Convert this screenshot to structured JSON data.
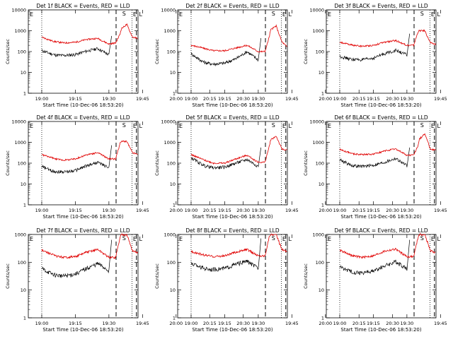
{
  "figure": {
    "series_colors": {
      "events": "#000000",
      "lld": "#e00000"
    },
    "y_ticks": [
      1,
      10,
      100,
      1000,
      10000
    ],
    "y_tick_labels": [
      "1",
      "10",
      "100",
      "1000",
      "10000"
    ],
    "x_ticks": [
      "19:00",
      "19:15",
      "19:30",
      "19:45",
      "20:00",
      "20:15",
      "20:30"
    ],
    "x_range_min": [
      -6,
      43
    ],
    "event_letters": [
      "E",
      "S",
      "E",
      "L"
    ]
  },
  "chart_data": [
    {
      "type": "line",
      "title": "Det 1f BLACK = Events, RED = LLD",
      "xlabel": "Start Time (10-Dec-06 18:53:20)",
      "ylabel": "Counts/sec",
      "y_scale": "log",
      "ylim": [
        1,
        10000
      ],
      "x_min": [
        0,
        4,
        6,
        10,
        15,
        20,
        25,
        30,
        33,
        35,
        35.5,
        38,
        40.5,
        43
      ],
      "events": [
        110,
        80,
        68,
        65,
        72,
        105,
        140,
        70
      ],
      "lld": [
        500,
        340,
        300,
        260,
        280,
        380,
        430,
        230,
        260,
        700,
        1250,
        2000,
        500,
        420
      ],
      "markers": {
        "E": 33.2,
        "S": 35.5,
        "L": 40.3
      }
    },
    {
      "type": "line",
      "title": "Det 2f BLACK = Events, RED = LLD",
      "xlabel": "Start Time (10-Dec-06 18:53:20)",
      "ylabel": "Counts/sec",
      "y_scale": "log",
      "ylim": [
        1,
        10000
      ],
      "x_min": [
        0,
        4,
        6,
        10,
        15,
        20,
        25,
        30,
        33,
        35,
        35.5,
        38,
        40.5,
        43
      ],
      "events": [
        80,
        40,
        30,
        25,
        28,
        45,
        100,
        40
      ],
      "lld": [
        200,
        160,
        140,
        110,
        110,
        150,
        200,
        100,
        100,
        550,
        1100,
        1700,
        300,
        160
      ],
      "markers": {
        "E": 33.2,
        "S": 35.5,
        "L": 40.3
      }
    },
    {
      "type": "line",
      "title": "Det 3f BLACK = Events, RED = LLD",
      "xlabel": "Start Time (10-Dec-06 18:53:20)",
      "ylabel": "Counts/sec",
      "y_scale": "log",
      "ylim": [
        1,
        10000
      ],
      "x_min": [
        0,
        4,
        6,
        10,
        15,
        20,
        25,
        30,
        33,
        35,
        35.5,
        38,
        40.5,
        43
      ],
      "events": [
        60,
        45,
        42,
        40,
        48,
        80,
        115,
        70
      ],
      "lld": [
        280,
        220,
        200,
        180,
        200,
        280,
        340,
        200,
        200,
        900,
        1000,
        1000,
        260,
        220
      ],
      "markers": {
        "E": 33.2,
        "S": 35.5,
        "L": 40.3
      }
    },
    {
      "type": "line",
      "title": "Det 4f BLACK = Events, RED = LLD",
      "xlabel": "Start Time (10-Dec-06 18:53:20)",
      "ylabel": "Counts/sec",
      "y_scale": "log",
      "ylim": [
        1,
        10000
      ],
      "x_min": [
        0,
        4,
        6,
        10,
        15,
        20,
        25,
        30,
        33,
        35,
        35.5,
        38,
        40.5,
        43
      ],
      "events": [
        70,
        45,
        40,
        38,
        45,
        75,
        110,
        60
      ],
      "lld": [
        260,
        190,
        160,
        140,
        160,
        250,
        320,
        160,
        160,
        900,
        1100,
        1100,
        320,
        260
      ],
      "markers": {
        "E": 33.2,
        "S": 35.5,
        "L": 40.3
      }
    },
    {
      "type": "line",
      "title": "Det 5f BLACK = Events, RED = LLD",
      "xlabel": "Start Time (10-Dec-06 18:53:20)",
      "ylabel": "Counts/sec",
      "y_scale": "log",
      "ylim": [
        1,
        10000
      ],
      "x_min": [
        0,
        4,
        6,
        10,
        15,
        20,
        25,
        30,
        33,
        35,
        35.5,
        38,
        40.5,
        43
      ],
      "events": [
        180,
        100,
        75,
        60,
        65,
        100,
        150,
        70
      ],
      "lld": [
        260,
        170,
        140,
        100,
        100,
        160,
        240,
        110,
        110,
        700,
        1300,
        2000,
        480,
        420
      ],
      "markers": {
        "E": 33.2,
        "S": 35.5,
        "L": 40.3
      }
    },
    {
      "type": "line",
      "title": "Det 6f BLACK = Events, RED = LLD",
      "xlabel": "Start Time (10-Dec-06 18:53:20)",
      "ylabel": "Counts/sec",
      "y_scale": "log",
      "ylim": [
        1,
        10000
      ],
      "x_min": [
        0,
        4,
        6,
        10,
        15,
        20,
        25,
        30,
        33,
        35,
        35.5,
        38,
        40.5,
        43
      ],
      "events": [
        150,
        90,
        75,
        70,
        80,
        110,
        170,
        75
      ],
      "lld": [
        450,
        330,
        280,
        260,
        270,
        380,
        480,
        240,
        240,
        700,
        1400,
        2600,
        480,
        420
      ],
      "markers": {
        "E": 33.2,
        "S": 35.5,
        "L": 40.3
      }
    },
    {
      "type": "line",
      "title": "Det 7f BLACK = Events, RED = LLD",
      "xlabel": "Start Time (10-Dec-06 18:53:20)",
      "ylabel": "Counts/sec",
      "y_scale": "log",
      "ylim": [
        1,
        1000
      ],
      "x_min": [
        0,
        4,
        6,
        10,
        15,
        20,
        25,
        30,
        33,
        35,
        35.5,
        38,
        40.5,
        43
      ],
      "events": [
        60,
        40,
        35,
        32,
        38,
        60,
        90,
        50
      ],
      "lld": [
        270,
        200,
        170,
        150,
        160,
        230,
        290,
        150,
        150,
        800,
        1000,
        1000,
        260,
        220
      ],
      "markers": {
        "E": 33.2,
        "S": 35.5,
        "L": 40.3
      }
    },
    {
      "type": "line",
      "title": "Det 8f BLACK = Events, RED = LLD",
      "xlabel": "Start Time (10-Dec-06 18:53:20)",
      "ylabel": "Counts/sec",
      "y_scale": "log",
      "ylim": [
        1,
        1000
      ],
      "x_min": [
        0,
        4,
        6,
        10,
        15,
        20,
        25,
        30,
        33,
        35,
        35.5,
        38,
        40.5,
        43
      ],
      "events": [
        90,
        70,
        60,
        55,
        60,
        85,
        110,
        60
      ],
      "lld": [
        250,
        200,
        180,
        160,
        170,
        230,
        290,
        170,
        170,
        900,
        1000,
        1000,
        300,
        240
      ],
      "markers": {
        "E": 33.2,
        "S": 35.5,
        "L": 40.3
      }
    },
    {
      "type": "line",
      "title": "Det 9f BLACK = Events, RED = LLD",
      "xlabel": "Start Time (10-Dec-06 18:53:20)",
      "ylabel": "Counts/sec",
      "y_scale": "log",
      "ylim": [
        1,
        1000
      ],
      "x_min": [
        0,
        4,
        6,
        10,
        15,
        20,
        25,
        30,
        33,
        35,
        35.5,
        38,
        40.5,
        43
      ],
      "events": [
        70,
        50,
        45,
        42,
        48,
        75,
        105,
        60
      ],
      "lld": [
        270,
        200,
        170,
        150,
        170,
        250,
        300,
        160,
        160,
        800,
        1000,
        1000,
        260,
        220
      ],
      "markers": {
        "E": 33.2,
        "S": 35.5,
        "L": 40.3
      }
    }
  ]
}
